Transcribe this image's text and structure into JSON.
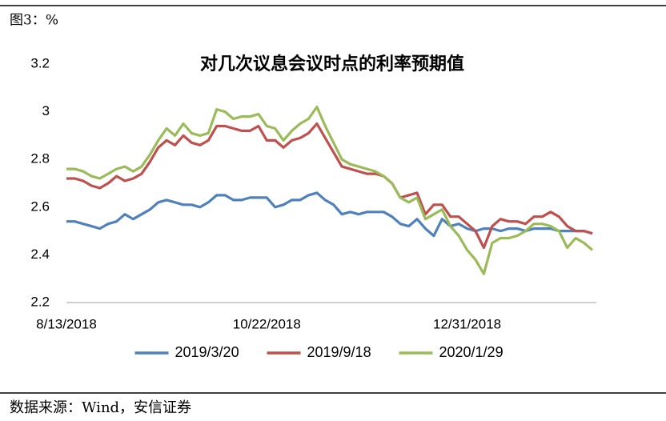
{
  "header": "图3：%",
  "source": "数据来源：Wind，安信证券",
  "chart_data": {
    "type": "line",
    "title": "对几次议息会议时点的利率预期值",
    "categories": [
      "8/13/2018",
      null,
      null,
      null,
      null,
      null,
      null,
      null,
      null,
      null,
      null,
      null,
      null,
      null,
      null,
      null,
      null,
      null,
      null,
      null,
      null,
      null,
      null,
      null,
      "10/22/2018",
      null,
      null,
      null,
      null,
      null,
      null,
      null,
      null,
      null,
      null,
      null,
      null,
      null,
      null,
      null,
      null,
      null,
      null,
      null,
      null,
      null,
      null,
      null,
      "12/31/2018",
      null,
      null,
      null,
      null,
      null,
      null,
      null,
      null,
      null,
      null,
      null,
      null,
      null,
      null,
      null
    ],
    "series": [
      {
        "name": "2019/3/20",
        "color": "#4f81bd",
        "values": [
          2.54,
          2.54,
          2.53,
          2.52,
          2.51,
          2.53,
          2.54,
          2.57,
          2.55,
          2.57,
          2.59,
          2.62,
          2.63,
          2.62,
          2.61,
          2.61,
          2.6,
          2.62,
          2.65,
          2.65,
          2.63,
          2.63,
          2.64,
          2.64,
          2.64,
          2.6,
          2.61,
          2.63,
          2.63,
          2.65,
          2.66,
          2.63,
          2.61,
          2.57,
          2.58,
          2.57,
          2.58,
          2.58,
          2.58,
          2.56,
          2.53,
          2.52,
          2.55,
          2.51,
          2.48,
          2.55,
          2.52,
          2.53,
          2.51,
          2.5,
          2.51,
          2.51,
          2.5,
          2.51,
          2.51,
          2.5,
          2.51,
          2.51,
          2.51,
          2.5,
          2.5,
          2.5,
          2.5,
          2.49
        ]
      },
      {
        "name": "2019/9/18",
        "color": "#c0504d",
        "values": [
          2.72,
          2.72,
          2.71,
          2.69,
          2.68,
          2.7,
          2.73,
          2.71,
          2.72,
          2.74,
          2.79,
          2.85,
          2.88,
          2.86,
          2.9,
          2.87,
          2.86,
          2.88,
          2.94,
          2.94,
          2.93,
          2.92,
          2.92,
          2.94,
          2.88,
          2.88,
          2.85,
          2.88,
          2.89,
          2.91,
          2.95,
          2.89,
          2.83,
          2.77,
          2.76,
          2.75,
          2.74,
          2.74,
          2.73,
          2.7,
          2.64,
          2.65,
          2.66,
          2.57,
          2.61,
          2.61,
          2.56,
          2.56,
          2.53,
          2.5,
          2.43,
          2.52,
          2.55,
          2.54,
          2.54,
          2.53,
          2.56,
          2.56,
          2.58,
          2.56,
          2.52,
          2.5,
          2.5,
          2.49
        ]
      },
      {
        "name": "2020/1/29",
        "color": "#9bbb59",
        "values": [
          2.76,
          2.76,
          2.75,
          2.73,
          2.72,
          2.74,
          2.76,
          2.77,
          2.75,
          2.77,
          2.82,
          2.88,
          2.93,
          2.9,
          2.95,
          2.91,
          2.9,
          2.91,
          3.01,
          3.0,
          2.97,
          2.98,
          2.98,
          2.99,
          2.94,
          2.93,
          2.88,
          2.92,
          2.95,
          2.97,
          3.02,
          2.94,
          2.87,
          2.8,
          2.78,
          2.77,
          2.76,
          2.75,
          2.73,
          2.7,
          2.64,
          2.62,
          2.64,
          2.55,
          2.57,
          2.59,
          2.52,
          2.48,
          2.42,
          2.38,
          2.32,
          2.45,
          2.47,
          2.47,
          2.48,
          2.5,
          2.53,
          2.53,
          2.52,
          2.5,
          2.43,
          2.47,
          2.45,
          2.42
        ]
      }
    ],
    "ylim": [
      2.2,
      3.2
    ],
    "yticks": [
      2.2,
      2.4,
      2.6,
      2.8,
      3,
      3.2
    ],
    "grid": false,
    "legend": "bottom"
  }
}
